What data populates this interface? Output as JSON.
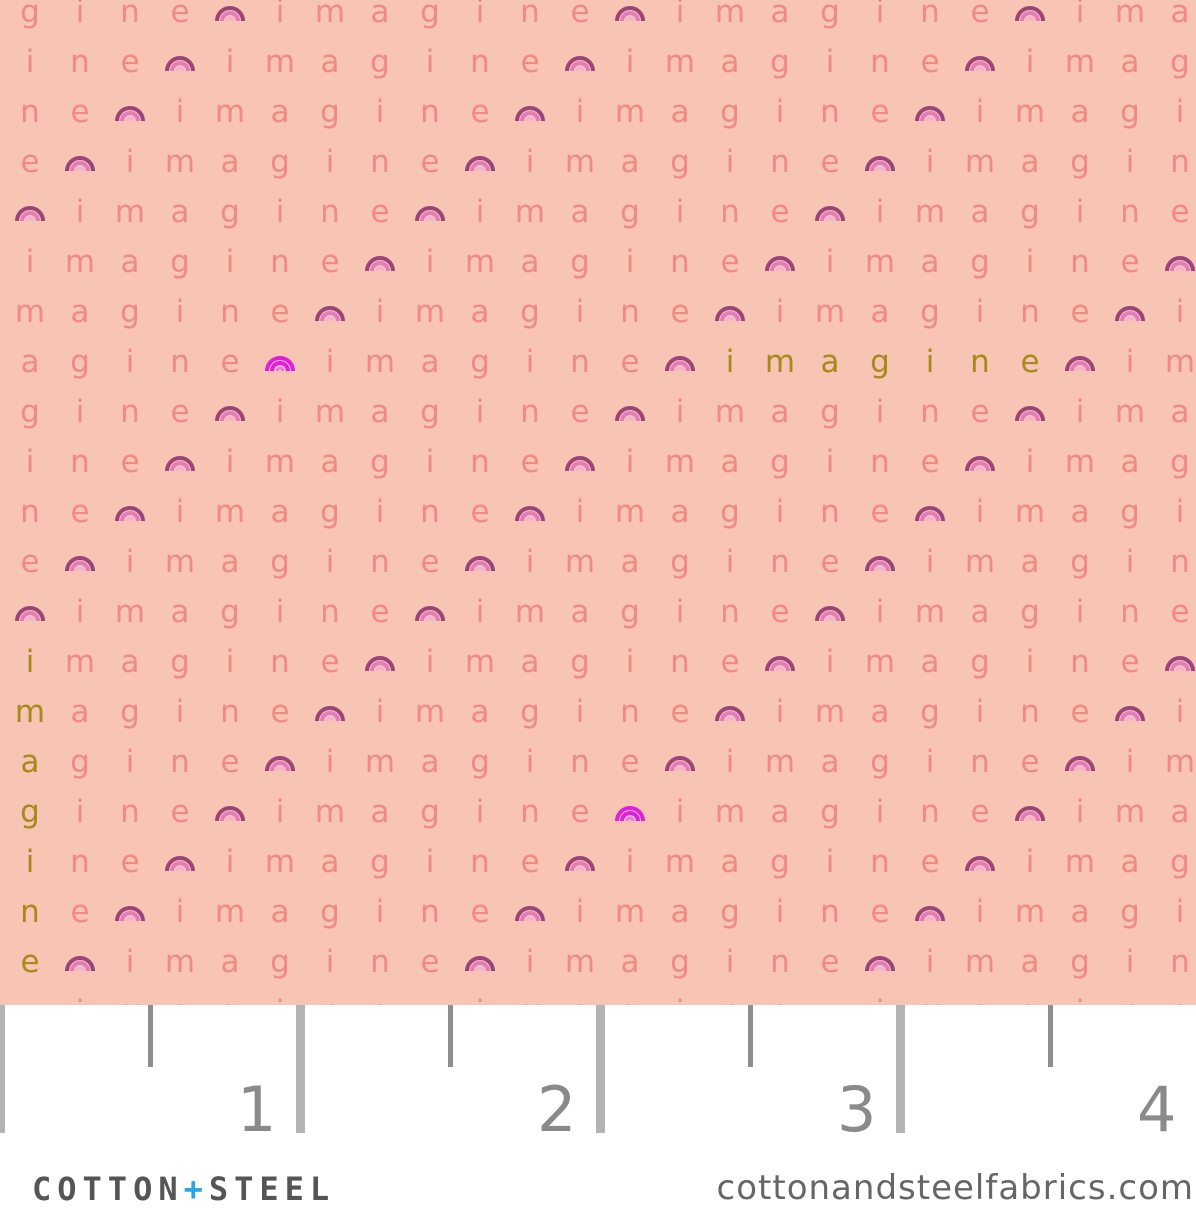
{
  "fabric": {
    "motif_word": "imagine",
    "motif_sequence": [
      "i",
      "m",
      "a",
      "g",
      "i",
      "n",
      "e",
      "rainbow-icon"
    ],
    "colors": {
      "background": "#f8c4b3",
      "letters": "#ef8a84",
      "highlight_letters": "#a88a1c",
      "rainbow_outer": "#9a4478",
      "rainbow_middle": "#e27cbc",
      "rainbow_inner": "#f4b0d2",
      "highlight_rainbow": "#e01ee0"
    }
  },
  "ruler": {
    "numbers": [
      "1",
      "2",
      "3",
      "4"
    ]
  },
  "footer": {
    "brand_left": "COTTON",
    "brand_plus": "+",
    "brand_right": "STEEL",
    "url": "cottonandsteelfabrics.com"
  }
}
